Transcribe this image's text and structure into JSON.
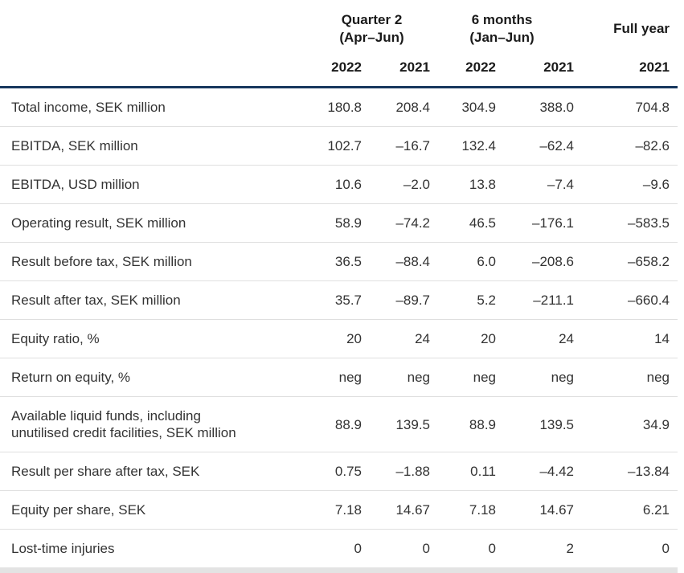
{
  "table": {
    "title": "key-figures-table",
    "column_groups": [
      {
        "label": "Quarter 2\n(Apr–Jun)",
        "colspan": 2
      },
      {
        "label": "6 months\n(Jan–Jun)",
        "colspan": 2
      },
      {
        "label": "Full year",
        "colspan": 1
      }
    ],
    "year_headers": [
      "2022",
      "2021",
      "2022",
      "2021",
      "2021"
    ],
    "rows": [
      {
        "label": "Total income, SEK million",
        "values": [
          "180.8",
          "208.4",
          "304.9",
          "388.0",
          "704.8"
        ]
      },
      {
        "label": "EBITDA, SEK million",
        "values": [
          "102.7",
          "–16.7",
          "132.4",
          "–62.4",
          "–82.6"
        ]
      },
      {
        "label": "EBITDA, USD million",
        "values": [
          "10.6",
          "–2.0",
          "13.8",
          "–7.4",
          "–9.6"
        ]
      },
      {
        "label": "Operating result, SEK million",
        "values": [
          "58.9",
          "–74.2",
          "46.5",
          "–176.1",
          "–583.5"
        ]
      },
      {
        "label": "Result before tax, SEK million",
        "values": [
          "36.5",
          "–88.4",
          "6.0",
          "–208.6",
          "–658.2"
        ]
      },
      {
        "label": "Result after tax, SEK million",
        "values": [
          "35.7",
          "–89.7",
          "5.2",
          "–211.1",
          "–660.4"
        ]
      },
      {
        "label": "Equity ratio, %",
        "values": [
          "20",
          "24",
          "20",
          "24",
          "14"
        ]
      },
      {
        "label": "Return on equity, %",
        "values": [
          "neg",
          "neg",
          "neg",
          "neg",
          "neg"
        ]
      },
      {
        "label": "Available liquid funds, including\nunutilised credit facilities, SEK million",
        "values": [
          "88.9",
          "139.5",
          "88.9",
          "139.5",
          "34.9"
        ]
      },
      {
        "label": "Result per share after tax, SEK",
        "values": [
          "0.75",
          "–1.88",
          "0.11",
          "–4.42",
          "–13.84"
        ]
      },
      {
        "label": "Equity per share, SEK",
        "values": [
          "7.18",
          "14.67",
          "7.18",
          "14.67",
          "6.21"
        ]
      },
      {
        "label": "Lost-time injuries",
        "values": [
          "0",
          "0",
          "0",
          "2",
          "0"
        ]
      }
    ],
    "colors": {
      "header_rule": "#17375d",
      "row_divider": "#dfdfdf",
      "bottom_bar": "#e3e3e3",
      "body_text": "#333333",
      "header_text": "#1a1a1a"
    }
  }
}
